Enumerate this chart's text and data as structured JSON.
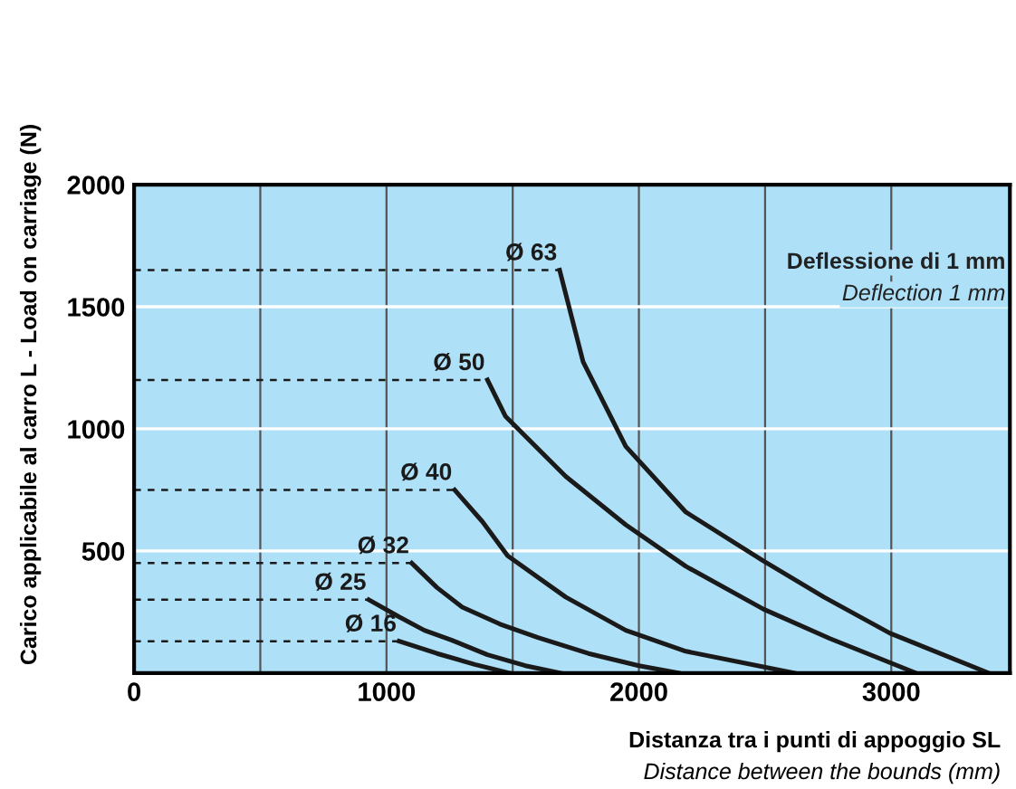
{
  "chart_data": {
    "type": "line",
    "xlabel": "Distanza tra i punti di appoggio SL\nDistance between the bounds (mm)",
    "ylabel": "Carico applicabile al carro L - Load on carriage (N)",
    "annotations": [
      "Deflessione di 1 mm",
      "Deflection 1 mm"
    ],
    "xlim": [
      0,
      3470
    ],
    "ylim": [
      0,
      2000
    ],
    "xticks": [
      0,
      {
        "value": 500,
        "label": null
      },
      1000,
      {
        "value": 1500,
        "label": null
      },
      2000,
      {
        "value": 2500,
        "label": null
      },
      3000
    ],
    "yticks": [
      {
        "value": 0,
        "label": null
      },
      500,
      1000,
      1500,
      2000
    ],
    "grid": true,
    "line_style": "solid",
    "marker": "none",
    "series": [
      {
        "name": "Ø 63",
        "color": "#1a1a1a",
        "x": [
          1686,
          1779,
          1948,
          2186,
          2493,
          2733,
          2995,
          3386
        ],
        "values": [
          1650,
          1274,
          928,
          659,
          459,
          311,
          163,
          0
        ]
      },
      {
        "name": "Ø 50",
        "color": "#1a1a1a",
        "x": [
          1400,
          1471,
          1710,
          1948,
          2186,
          2493,
          2757,
          3098
        ],
        "values": [
          1200,
          1052,
          805,
          607,
          437,
          262,
          141,
          0
        ]
      },
      {
        "name": "Ø 40",
        "color": "#1a1a1a",
        "x": [
          1270,
          1380,
          1480,
          1710,
          1948,
          2186,
          2614
        ],
        "values": [
          750,
          620,
          480,
          311,
          175,
          89,
          0
        ]
      },
      {
        "name": "Ø 32",
        "color": "#1a1a1a",
        "x": [
          1100,
          1200,
          1300,
          1450,
          1600,
          1800,
          2000,
          2157
        ],
        "values": [
          450,
          350,
          270,
          200,
          145,
          80,
          30,
          0
        ]
      },
      {
        "name": "Ø 25",
        "color": "#1a1a1a",
        "x": [
          930,
          1050,
          1150,
          1257,
          1400,
          1550,
          1690
        ],
        "values": [
          300,
          230,
          175,
          135,
          75,
          30,
          0
        ]
      },
      {
        "name": "Ø 16",
        "color": "#1a1a1a",
        "x": [
          1050,
          1200,
          1350,
          1486
        ],
        "values": [
          130,
          80,
          35,
          0
        ]
      }
    ],
    "ref_lines": [
      {
        "axis": "y",
        "value": 1650,
        "line_style": "dashed",
        "color": "#1a1a1a"
      },
      {
        "axis": "y",
        "value": 1200,
        "line_style": "dashed",
        "color": "#1a1a1a"
      },
      {
        "axis": "y",
        "value": 750,
        "line_style": "dashed",
        "color": "#1a1a1a"
      },
      {
        "axis": "y",
        "value": 450,
        "line_style": "dashed",
        "color": "#1a1a1a"
      },
      {
        "axis": "y",
        "value": 300,
        "line_style": "dashed",
        "color": "#1a1a1a"
      },
      {
        "axis": "y",
        "value": 130,
        "line_style": "dashed",
        "color": "#1a1a1a"
      }
    ]
  }
}
